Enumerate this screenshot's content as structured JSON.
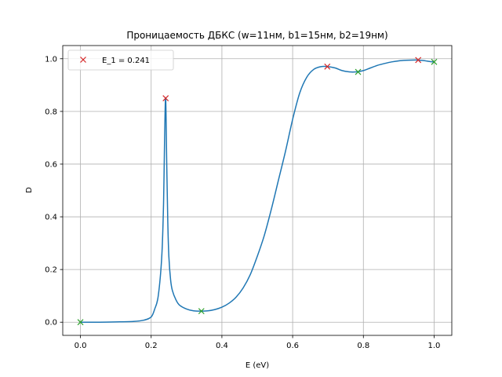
{
  "chart_data": {
    "type": "line",
    "title": "Проницаемость ДБКС (w=11нм, b1=15нм, b2=19нм)",
    "xlabel": "E (eV)",
    "ylabel": "D",
    "xlim": [
      -0.05,
      1.05
    ],
    "ylim": [
      -0.05,
      1.05
    ],
    "xticks": [
      0.0,
      0.2,
      0.4,
      0.6,
      0.8,
      1.0
    ],
    "xtick_labels": [
      "0.0",
      "0.2",
      "0.4",
      "0.6",
      "0.8",
      "1.0"
    ],
    "yticks": [
      0.0,
      0.2,
      0.4,
      0.6,
      0.8,
      1.0
    ],
    "ytick_labels": [
      "0.0",
      "0.2",
      "0.4",
      "0.6",
      "0.8",
      "1.0"
    ],
    "grid": true,
    "legend_position": "top-left",
    "series": [
      {
        "kind": "line",
        "color": "#1f77b4",
        "x": [
          0.0,
          0.05,
          0.1,
          0.15,
          0.18,
          0.2,
          0.21,
          0.22,
          0.23,
          0.235,
          0.238,
          0.241,
          0.244,
          0.247,
          0.25,
          0.255,
          0.26,
          0.27,
          0.28,
          0.3,
          0.32,
          0.34,
          0.36,
          0.38,
          0.4,
          0.42,
          0.44,
          0.46,
          0.48,
          0.5,
          0.52,
          0.54,
          0.56,
          0.58,
          0.6,
          0.62,
          0.64,
          0.66,
          0.68,
          0.7,
          0.72,
          0.74,
          0.76,
          0.78,
          0.8,
          0.82,
          0.84,
          0.86,
          0.88,
          0.9,
          0.92,
          0.94,
          0.955,
          0.97,
          0.98,
          0.99,
          1.0
        ],
        "y": [
          0.0,
          0.0,
          0.001,
          0.003,
          0.008,
          0.02,
          0.05,
          0.1,
          0.25,
          0.45,
          0.7,
          0.85,
          0.6,
          0.38,
          0.25,
          0.16,
          0.12,
          0.085,
          0.065,
          0.05,
          0.043,
          0.042,
          0.043,
          0.048,
          0.057,
          0.072,
          0.095,
          0.13,
          0.18,
          0.25,
          0.33,
          0.43,
          0.54,
          0.65,
          0.77,
          0.87,
          0.93,
          0.96,
          0.97,
          0.97,
          0.965,
          0.955,
          0.95,
          0.95,
          0.955,
          0.965,
          0.975,
          0.982,
          0.988,
          0.992,
          0.994,
          0.995,
          0.995,
          0.993,
          0.991,
          0.989,
          0.988
        ]
      },
      {
        "kind": "markers",
        "marker": "x",
        "color": "#d62728",
        "name": "E_1 = 0.241",
        "x": [
          0.241,
          0.698,
          0.955
        ],
        "y": [
          0.85,
          0.97,
          0.995
        ]
      },
      {
        "kind": "markers",
        "marker": "x",
        "color": "#2ca02c",
        "x": [
          0.0,
          0.342,
          0.785,
          1.0
        ],
        "y": [
          0.0,
          0.042,
          0.95,
          0.988
        ]
      }
    ]
  }
}
